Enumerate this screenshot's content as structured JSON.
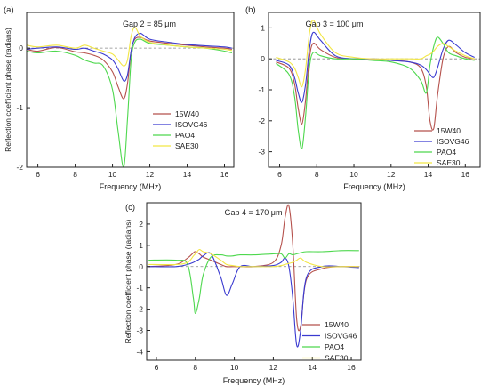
{
  "chart_data": [
    {
      "panel_label": "(a)",
      "type": "line",
      "title": "Gap 2 = 85 μm",
      "xlabel": "Frequency (MHz)",
      "ylabel": "Reflection coefficient phase (radians)",
      "xlim": [
        5.4,
        16.5
      ],
      "ylim": [
        -2.0,
        0.6
      ],
      "xticks": [
        6,
        8,
        10,
        12,
        14,
        16
      ],
      "yticks": [
        -2,
        -1,
        0
      ],
      "zero_line": true,
      "legend_position": "bottom-right",
      "x": [
        5.4,
        6.0,
        7.0,
        8.0,
        8.5,
        9.0,
        9.5,
        10.0,
        10.3,
        10.6,
        10.8,
        11.0,
        11.2,
        11.5,
        12.0,
        13.0,
        14.0,
        15.0,
        16.0,
        16.4
      ],
      "series": [
        {
          "name": "15W40",
          "color": "#b5514c",
          "values": [
            -0.02,
            -0.05,
            0.01,
            -0.06,
            -0.08,
            -0.12,
            -0.2,
            -0.4,
            -0.65,
            -0.85,
            -0.6,
            -0.05,
            0.15,
            0.18,
            0.12,
            0.08,
            0.05,
            0.02,
            0.0,
            -0.02
          ]
        },
        {
          "name": "ISOVG46",
          "color": "#3a3ad0",
          "values": [
            -0.02,
            0.0,
            0.02,
            -0.02,
            0.0,
            -0.05,
            -0.1,
            -0.2,
            -0.35,
            -0.55,
            -0.45,
            -0.05,
            0.18,
            0.25,
            0.15,
            0.1,
            0.06,
            0.04,
            0.02,
            0.0
          ]
        },
        {
          "name": "PAO4",
          "color": "#4ed84e",
          "values": [
            -0.05,
            -0.08,
            -0.05,
            -0.12,
            -0.2,
            -0.25,
            -0.3,
            -0.7,
            -1.4,
            -2.0,
            -1.2,
            -0.2,
            0.1,
            0.15,
            0.08,
            0.05,
            0.02,
            0.0,
            -0.05,
            -0.08
          ]
        },
        {
          "name": "SAE30",
          "color": "#f2e645",
          "values": [
            0.05,
            0.02,
            0.05,
            0.0,
            0.05,
            0.0,
            -0.05,
            -0.1,
            -0.2,
            -0.3,
            -0.2,
            0.2,
            0.35,
            0.2,
            0.1,
            0.05,
            0.02,
            0.0,
            -0.02,
            -0.04
          ]
        }
      ]
    },
    {
      "panel_label": "(b)",
      "type": "line",
      "title": "Gap 3 = 100 μm",
      "xlabel": "Frequency (MHz)",
      "ylabel": "",
      "xlim": [
        5.4,
        16.8
      ],
      "ylim": [
        -3.5,
        1.5
      ],
      "xticks": [
        6,
        8,
        10,
        12,
        14,
        16
      ],
      "yticks": [
        -3,
        -2,
        -1,
        0,
        1
      ],
      "zero_line": true,
      "legend_position": "bottom-right",
      "x": [
        5.8,
        6.5,
        6.8,
        7.0,
        7.2,
        7.4,
        7.6,
        7.8,
        8.2,
        9.0,
        10.0,
        11.0,
        12.0,
        13.0,
        13.6,
        13.9,
        14.1,
        14.3,
        14.5,
        14.8,
        15.1,
        15.5,
        16.0,
        16.5
      ],
      "series": [
        {
          "name": "15W40",
          "color": "#b5514c",
          "values": [
            -0.1,
            -0.3,
            -0.8,
            -1.6,
            -2.1,
            -1.3,
            0.0,
            0.5,
            0.3,
            0.05,
            0.0,
            0.0,
            -0.05,
            -0.1,
            -0.3,
            -0.9,
            -2.0,
            -2.25,
            -1.2,
            0.0,
            0.4,
            0.2,
            0.05,
            0.0
          ]
        },
        {
          "name": "ISOVG46",
          "color": "#3a3ad0",
          "values": [
            -0.05,
            -0.2,
            -0.6,
            -1.1,
            -1.4,
            -0.8,
            0.3,
            0.85,
            0.6,
            0.1,
            0.0,
            0.0,
            -0.05,
            -0.1,
            -0.2,
            -0.35,
            -0.5,
            -0.6,
            -0.3,
            0.3,
            0.6,
            0.45,
            0.2,
            0.05
          ]
        },
        {
          "name": "PAO4",
          "color": "#4ed84e",
          "values": [
            -0.15,
            -0.5,
            -1.2,
            -2.3,
            -2.9,
            -1.8,
            -0.3,
            0.2,
            0.1,
            0.0,
            0.0,
            -0.05,
            -0.1,
            -0.3,
            -0.7,
            -1.1,
            -0.2,
            0.4,
            0.7,
            0.5,
            0.2,
            0.1,
            0.0,
            -0.05
          ]
        },
        {
          "name": "SAE30",
          "color": "#f2e645",
          "values": [
            0.05,
            -0.1,
            -0.3,
            -0.6,
            -0.9,
            -0.3,
            0.8,
            1.25,
            0.8,
            0.2,
            0.05,
            0.0,
            0.0,
            0.0,
            0.0,
            0.1,
            0.15,
            0.25,
            0.4,
            0.5,
            0.4,
            0.25,
            0.1,
            0.0
          ]
        }
      ]
    },
    {
      "panel_label": "(c)",
      "type": "line",
      "title": "Gap 4 = 170 μm",
      "xlabel": "Frequency (MHz)",
      "ylabel": "Reflection coefficient phase (radians)",
      "xlim": [
        5.5,
        16.5
      ],
      "ylim": [
        -4.4,
        3.0
      ],
      "xticks": [
        6,
        8,
        10,
        12,
        14,
        16
      ],
      "yticks": [
        -4,
        -3,
        -2,
        -1,
        0,
        1,
        2
      ],
      "zero_line": true,
      "legend_position": "bottom-right",
      "x": [
        5.6,
        7.0,
        7.6,
        7.9,
        8.0,
        8.2,
        8.4,
        8.8,
        9.3,
        9.6,
        9.9,
        10.3,
        11.0,
        12.0,
        12.4,
        12.6,
        12.8,
        13.0,
        13.2,
        13.4,
        13.7,
        14.5,
        15.5,
        16.4
      ],
      "series": [
        {
          "name": "15W40",
          "color": "#b5514c",
          "values": [
            0.0,
            0.1,
            0.4,
            0.65,
            0.7,
            0.6,
            0.45,
            0.3,
            0.1,
            0.0,
            0.0,
            0.0,
            0.0,
            0.2,
            1.0,
            2.3,
            2.85,
            1.0,
            -2.5,
            -2.8,
            -0.6,
            -0.1,
            0.0,
            0.0
          ]
        },
        {
          "name": "ISOVG46",
          "color": "#3a3ad0",
          "values": [
            0.0,
            0.0,
            0.1,
            0.2,
            0.25,
            0.35,
            0.5,
            0.6,
            -0.5,
            -1.35,
            -0.8,
            0.0,
            0.0,
            0.05,
            0.2,
            0.4,
            0.0,
            -1.5,
            -3.7,
            -3.0,
            -0.5,
            0.0,
            0.0,
            -0.05
          ]
        },
        {
          "name": "PAO4",
          "color": "#4ed84e",
          "values": [
            0.3,
            0.3,
            0.1,
            -1.5,
            -2.2,
            -1.5,
            -0.4,
            0.45,
            0.55,
            0.5,
            0.5,
            0.55,
            0.55,
            0.6,
            0.6,
            0.4,
            0.6,
            0.55,
            0.6,
            0.65,
            0.7,
            0.7,
            0.75,
            0.75
          ]
        },
        {
          "name": "SAE30",
          "color": "#f2e645",
          "values": [
            0.1,
            0.1,
            0.2,
            0.5,
            0.6,
            0.8,
            0.7,
            0.6,
            0.3,
            0.1,
            0.05,
            0.0,
            0.0,
            0.0,
            0.05,
            0.1,
            0.15,
            0.2,
            0.3,
            0.4,
            0.2,
            0.0,
            0.0,
            0.0
          ]
        }
      ]
    }
  ]
}
